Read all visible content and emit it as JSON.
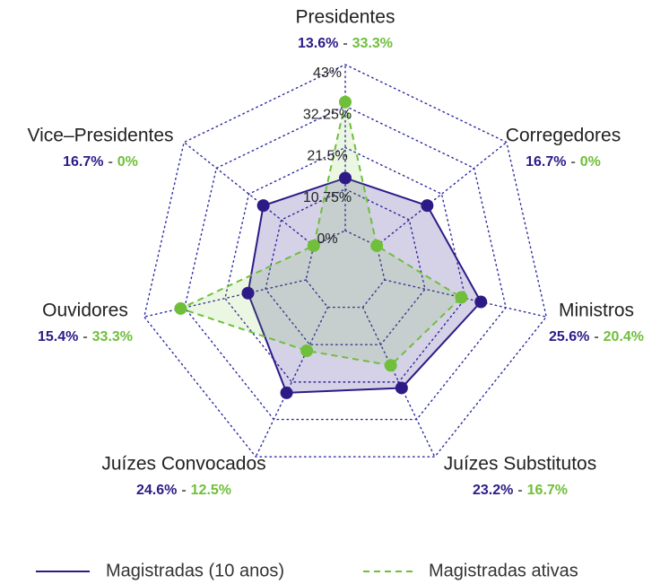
{
  "chart_data": {
    "type": "radar",
    "categories": [
      "Presidentes",
      "Corregedores",
      "Ministros",
      "Juízes Substitutos",
      "Juízes Convocados",
      "Ouvidores",
      "Vice–Presidentes"
    ],
    "series": [
      {
        "name": "Magistradas (10 anos)",
        "color": "#2e1a87",
        "line_style": "solid",
        "values": [
          13.6,
          16.7,
          25.6,
          23.2,
          24.6,
          15.4,
          16.7
        ],
        "value_labels": [
          "13.6%",
          "16.7%",
          "25.6%",
          "23.2%",
          "24.6%",
          "15.4%",
          "16.7%"
        ]
      },
      {
        "name": "Magistradas ativas",
        "color": "#6fbf3a",
        "line_style": "dashed",
        "values": [
          33.3,
          0,
          20.4,
          16.7,
          12.5,
          33.3,
          0
        ],
        "value_labels": [
          "33.3%",
          "0%",
          "20.4%",
          "16.7%",
          "12.5%",
          "33.3%",
          "0%"
        ]
      }
    ],
    "value_label_separator": "-",
    "rlim": [
      0,
      43
    ],
    "rticks": [
      {
        "value": 0,
        "label": "0%"
      },
      {
        "value": 10.75,
        "label": "10.75%"
      },
      {
        "value": 21.5,
        "label": "21.5%"
      },
      {
        "value": 32.25,
        "label": "32.25%"
      },
      {
        "value": 43,
        "label": "43%"
      }
    ],
    "grid_color": "#2a2aa0",
    "legend": "bottom"
  }
}
